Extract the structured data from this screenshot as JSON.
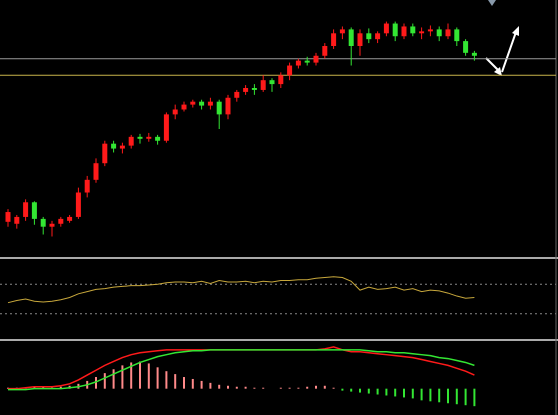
{
  "chart_data": [
    {
      "type": "candlestick",
      "up_color": "#ff1a1a",
      "down_color": "#33e633",
      "ylim": [
        0,
        258
      ],
      "levels": [
        {
          "value": 202,
          "color": "#9a9a9a"
        },
        {
          "value": 185,
          "color": "#c8b44a"
        }
      ],
      "open": [
        35,
        33,
        40,
        55,
        38,
        30,
        33,
        36,
        40,
        65,
        78,
        95,
        115,
        110,
        113,
        122,
        120,
        122,
        118,
        145,
        150,
        155,
        158,
        154,
        158,
        145,
        162,
        168,
        172,
        170,
        180,
        176,
        185,
        195,
        200,
        198,
        205,
        215,
        228,
        232,
        215,
        228,
        222,
        228,
        238,
        225,
        235,
        228,
        230,
        232,
        225,
        232,
        220,
        208
      ],
      "close": [
        45,
        40,
        55,
        38,
        30,
        33,
        38,
        40,
        65,
        78,
        95,
        115,
        110,
        113,
        122,
        120,
        122,
        118,
        145,
        150,
        155,
        158,
        154,
        158,
        145,
        162,
        168,
        172,
        170,
        180,
        176,
        185,
        195,
        200,
        198,
        205,
        215,
        228,
        232,
        215,
        228,
        222,
        228,
        238,
        225,
        235,
        228,
        230,
        232,
        225,
        232,
        220,
        208,
        205
      ],
      "high": [
        48,
        42,
        58,
        56,
        40,
        36,
        40,
        42,
        70,
        82,
        100,
        118,
        118,
        116,
        124,
        125,
        126,
        124,
        147,
        155,
        158,
        160,
        160,
        162,
        160,
        165,
        170,
        175,
        176,
        185,
        182,
        188,
        198,
        202,
        204,
        208,
        218,
        232,
        235,
        234,
        232,
        233,
        230,
        240,
        240,
        238,
        238,
        234,
        236,
        235,
        238,
        234,
        222,
        210
      ],
      "low": [
        30,
        28,
        36,
        32,
        22,
        20,
        30,
        34,
        38,
        60,
        75,
        92,
        106,
        105,
        110,
        115,
        117,
        114,
        116,
        140,
        148,
        152,
        150,
        150,
        130,
        140,
        158,
        165,
        165,
        168,
        168,
        172,
        180,
        192,
        195,
        195,
        202,
        212,
        222,
        195,
        205,
        218,
        218,
        225,
        220,
        222,
        225,
        222,
        225,
        220,
        222,
        215,
        205,
        200
      ]
    },
    {
      "type": "line",
      "color": "#c8a83c",
      "ylim": [
        0,
        100
      ],
      "levels": [
        70,
        30
      ],
      "values": [
        45,
        48,
        50,
        47,
        46,
        47,
        49,
        52,
        57,
        60,
        63,
        64,
        66,
        67,
        68,
        68,
        69,
        70,
        72,
        73,
        73,
        72,
        74,
        71,
        75,
        73,
        73,
        74,
        72,
        74,
        73,
        75,
        75,
        76,
        76,
        78,
        79,
        80,
        79,
        74,
        62,
        66,
        63,
        64,
        66,
        62,
        64,
        60,
        62,
        61,
        58,
        54,
        51,
        52
      ]
    },
    {
      "type": "macd",
      "ylim": [
        -24,
        46
      ],
      "pos_color": "#ff8a8a",
      "neg_color": "#33e633",
      "histogram": [
        1,
        1,
        1,
        2,
        2,
        1,
        2,
        3,
        5,
        8,
        12,
        16,
        20,
        24,
        27,
        28,
        26,
        22,
        18,
        15,
        12,
        10,
        8,
        6,
        4,
        3,
        2,
        2,
        1,
        1,
        0,
        1,
        1,
        1,
        2,
        3,
        3,
        1,
        -2,
        -3,
        -4,
        -5,
        -6,
        -7,
        -8,
        -9,
        -10,
        -12,
        -13,
        -14,
        -15,
        -16,
        -17,
        -18
      ],
      "series": [
        {
          "color": "#ff1a1a",
          "values": [
            0,
            0,
            1,
            2,
            2,
            2,
            3,
            5,
            9,
            14,
            19,
            24,
            28,
            32,
            35,
            37,
            38,
            39,
            40,
            40,
            40,
            40,
            40,
            40,
            40,
            40,
            40,
            40,
            40,
            40,
            40,
            40,
            40,
            40,
            40,
            40,
            41,
            43,
            40,
            38,
            38,
            37,
            36,
            35,
            34,
            33,
            32,
            30,
            28,
            26,
            24,
            21,
            18,
            14
          ]
        },
        {
          "color": "#33e633",
          "values": [
            -1,
            -1,
            -1,
            0,
            0,
            0,
            0,
            1,
            2,
            4,
            7,
            11,
            15,
            19,
            23,
            27,
            30,
            33,
            35,
            37,
            38,
            39,
            39,
            40,
            40,
            40,
            40,
            40,
            40,
            40,
            40,
            40,
            40,
            40,
            40,
            40,
            40,
            40,
            40,
            40,
            40,
            39,
            38,
            38,
            37,
            37,
            36,
            35,
            34,
            32,
            31,
            29,
            27,
            24
          ]
        }
      ]
    }
  ]
}
